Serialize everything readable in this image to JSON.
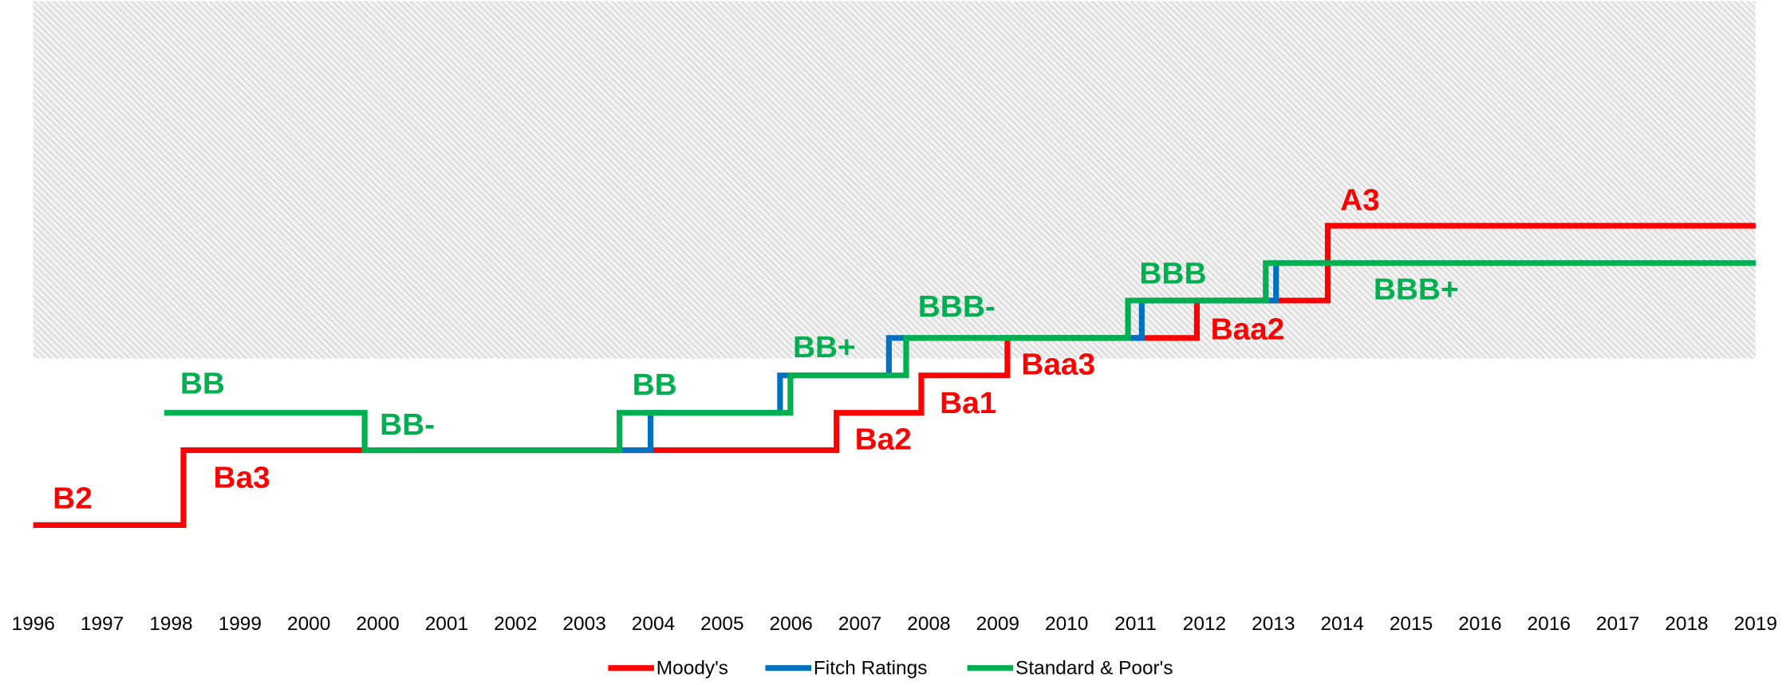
{
  "chart_data": {
    "type": "step",
    "xlim": [
      0,
      25
    ],
    "xticks": [
      {
        "value": 0,
        "label": "1996"
      },
      {
        "value": 1,
        "label": "1997"
      },
      {
        "value": 2,
        "label": "1998"
      },
      {
        "value": 3,
        "label": "1999"
      },
      {
        "value": 4,
        "label": "2000"
      },
      {
        "value": 5,
        "label": "2000"
      },
      {
        "value": 6,
        "label": "2001"
      },
      {
        "value": 7,
        "label": "2002"
      },
      {
        "value": 8,
        "label": "2003"
      },
      {
        "value": 9,
        "label": "2004"
      },
      {
        "value": 10,
        "label": "2005"
      },
      {
        "value": 11,
        "label": "2006"
      },
      {
        "value": 12,
        "label": "2007"
      },
      {
        "value": 13,
        "label": "2008"
      },
      {
        "value": 14,
        "label": "2009"
      },
      {
        "value": 15,
        "label": "2010"
      },
      {
        "value": 16,
        "label": "2011"
      },
      {
        "value": 17,
        "label": "2012"
      },
      {
        "value": 18,
        "label": "2013"
      },
      {
        "value": 19,
        "label": "2014"
      },
      {
        "value": 20,
        "label": "2015"
      },
      {
        "value": 21,
        "label": "2016"
      },
      {
        "value": 22,
        "label": "2016"
      },
      {
        "value": 23,
        "label": "2017"
      },
      {
        "value": 24,
        "label": "2018"
      },
      {
        "value": 25,
        "label": "2019"
      }
    ],
    "ylim": [
      -1,
      15
    ],
    "hatched_band": [
      5.45,
      15
    ],
    "series": [
      {
        "name": "Moody's",
        "color": "#ff0000",
        "x": [
          0,
          2.18,
          11.66,
          12.89,
          14.14,
          16.89,
          18.79,
          25
        ],
        "values": [
          1,
          3,
          4,
          5,
          6,
          7,
          9,
          9
        ]
      },
      {
        "name": "Fitch Ratings",
        "color": "#0070c0",
        "x": [
          4.81,
          8.96,
          10.84,
          12.42,
          16.09,
          18.04,
          25
        ],
        "values": [
          3,
          4,
          5,
          6,
          7,
          8,
          8
        ]
      },
      {
        "name": "Standard & Poor's",
        "color": "#00b050",
        "x": [
          1.9,
          4.81,
          8.51,
          10.99,
          12.67,
          15.89,
          17.89,
          25
        ],
        "values": [
          4,
          3,
          4,
          5,
          6,
          7,
          8,
          8
        ]
      }
    ],
    "annotations": [
      {
        "text": "B2",
        "series": 0
      },
      {
        "text": "Ba3",
        "series": 0
      },
      {
        "text": "BB",
        "series": 2
      },
      {
        "text": "BB-",
        "series": 2
      },
      {
        "text": "BB",
        "series": 2
      },
      {
        "text": "Ba2",
        "series": 0
      },
      {
        "text": "BB+",
        "series": 2
      },
      {
        "text": "Ba1",
        "series": 0
      },
      {
        "text": "Baa3",
        "series": 0
      },
      {
        "text": "BBB-",
        "series": 2
      },
      {
        "text": "BBB",
        "series": 2
      },
      {
        "text": "Baa2",
        "series": 0
      },
      {
        "text": "A3",
        "series": 0
      },
      {
        "text": "BBB+",
        "series": 2
      }
    ]
  }
}
